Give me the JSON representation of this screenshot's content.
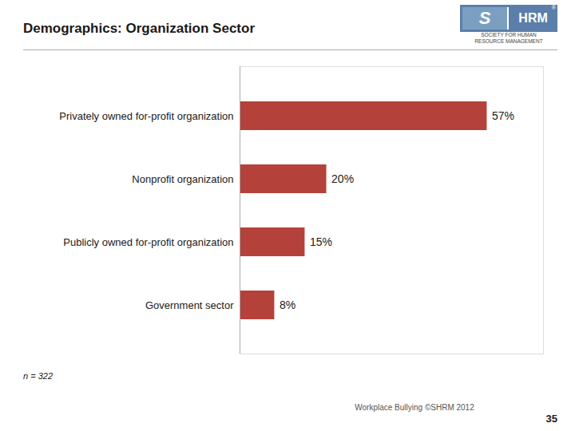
{
  "chart_data": {
    "type": "bar",
    "orientation": "horizontal",
    "title": "Demographics: Organization Sector",
    "categories": [
      "Government sector",
      "Publicly owned for-profit organization",
      "Nonprofit organization",
      "Privately owned for-profit organization"
    ],
    "values": [
      8,
      15,
      20,
      57
    ],
    "value_labels": [
      "8%",
      "15%",
      "20%",
      "57%"
    ],
    "data_labels": true,
    "color": "#b5413b",
    "xlim": [
      0,
      70
    ],
    "tick_labels": "y",
    "grid": false,
    "annotations": [
      "n = 322",
      "Workplace Bullying ©SHRM 2012",
      "35",
      "S",
      "HRM",
      "®",
      "SOCIETY FOR HUMAN",
      "RESOURCE MANAGEMENT"
    ]
  }
}
